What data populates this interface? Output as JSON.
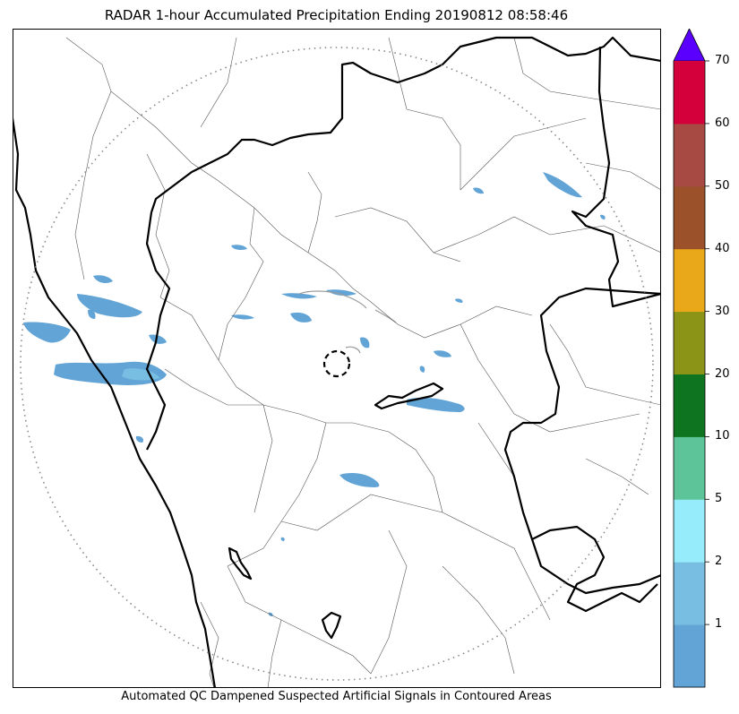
{
  "title": "RADAR 1-hour Accumulated Precipitation Ending 20190812 08:58:46",
  "footer": "Automated QC Dampened Suspected Artificial Signals in Contoured Areas",
  "colorbar": {
    "ticks": [
      "1",
      "2",
      "5",
      "10",
      "20",
      "30",
      "40",
      "50",
      "60",
      "70"
    ],
    "bins": [
      {
        "range": "0-1",
        "color": "#62a4d6"
      },
      {
        "range": "1-2",
        "color": "#78bde2"
      },
      {
        "range": "2-5",
        "color": "#96ecfa"
      },
      {
        "range": "5-10",
        "color": "#5dc49a"
      },
      {
        "range": "10-20",
        "color": "#0f7420"
      },
      {
        "range": "20-30",
        "color": "#8b9417"
      },
      {
        "range": "30-40",
        "color": "#e8a81a"
      },
      {
        "range": "40-50",
        "color": "#9b5129"
      },
      {
        "range": "50-60",
        "color": "#a84a44"
      },
      {
        "range": "60-70",
        "color": "#d3003c"
      }
    ],
    "extend_color": "#5a00ff"
  },
  "map": {
    "range_ring_style": "dotted",
    "radar_site_marker": "dashed circle",
    "border_color": "#000000",
    "district_line_color": "#555555"
  }
}
